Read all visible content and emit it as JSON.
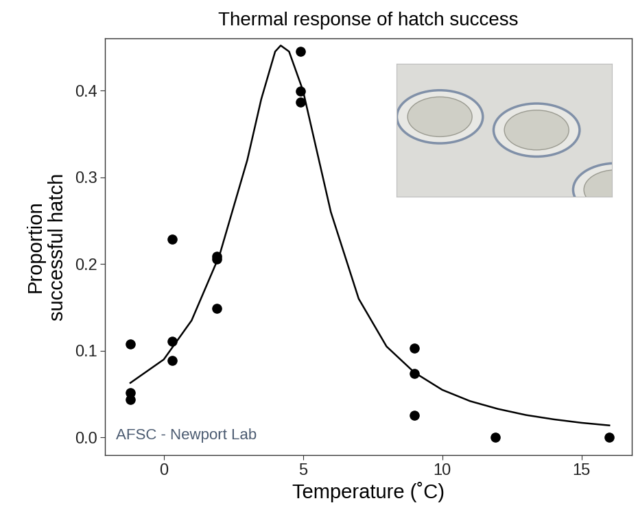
{
  "chart_data": {
    "type": "scatter",
    "title": "Thermal response of hatch success",
    "x_label": "Temperature (˚C)",
    "y_label": "Proportion\nsuccessful hatch",
    "annotations": [
      "AFSC - Newport Lab"
    ],
    "series": [
      {
        "type": "scatter",
        "color": "#000000",
        "marker": "o",
        "x": [
          -1.2,
          -1.2,
          -1.2,
          0.3,
          0.3,
          0.3,
          1.9,
          1.9,
          1.9,
          4.9,
          4.9,
          4.9,
          9.0,
          9.0,
          9.0,
          11.9,
          16.0
        ],
        "values": [
          0.108,
          0.052,
          0.044,
          0.229,
          0.111,
          0.089,
          0.209,
          0.206,
          0.149,
          0.445,
          0.399,
          0.387,
          0.103,
          0.074,
          0.026,
          0.0,
          0.0
        ]
      },
      {
        "type": "line",
        "color": "#000000",
        "line_style": "solid",
        "x": [
          -1.2,
          0,
          1,
          2,
          3,
          3.5,
          4,
          4.2,
          4.5,
          5,
          5.5,
          6,
          7,
          8,
          9,
          10,
          11,
          12,
          13,
          14,
          15,
          16
        ],
        "values": [
          0.063,
          0.09,
          0.135,
          0.21,
          0.32,
          0.39,
          0.445,
          0.452,
          0.445,
          0.4,
          0.33,
          0.26,
          0.16,
          0.105,
          0.075,
          0.055,
          0.042,
          0.033,
          0.026,
          0.021,
          0.017,
          0.014
        ]
      }
    ],
    "xlim": [
      -2.1,
      16.8
    ],
    "ylim": [
      -0.02,
      0.46
    ],
    "xticks": [
      0,
      5,
      10,
      15
    ],
    "yticks": [
      {
        "value": 0,
        "label": "0.0"
      },
      0.1,
      0.2,
      0.3,
      0.4
    ],
    "grid": false
  }
}
